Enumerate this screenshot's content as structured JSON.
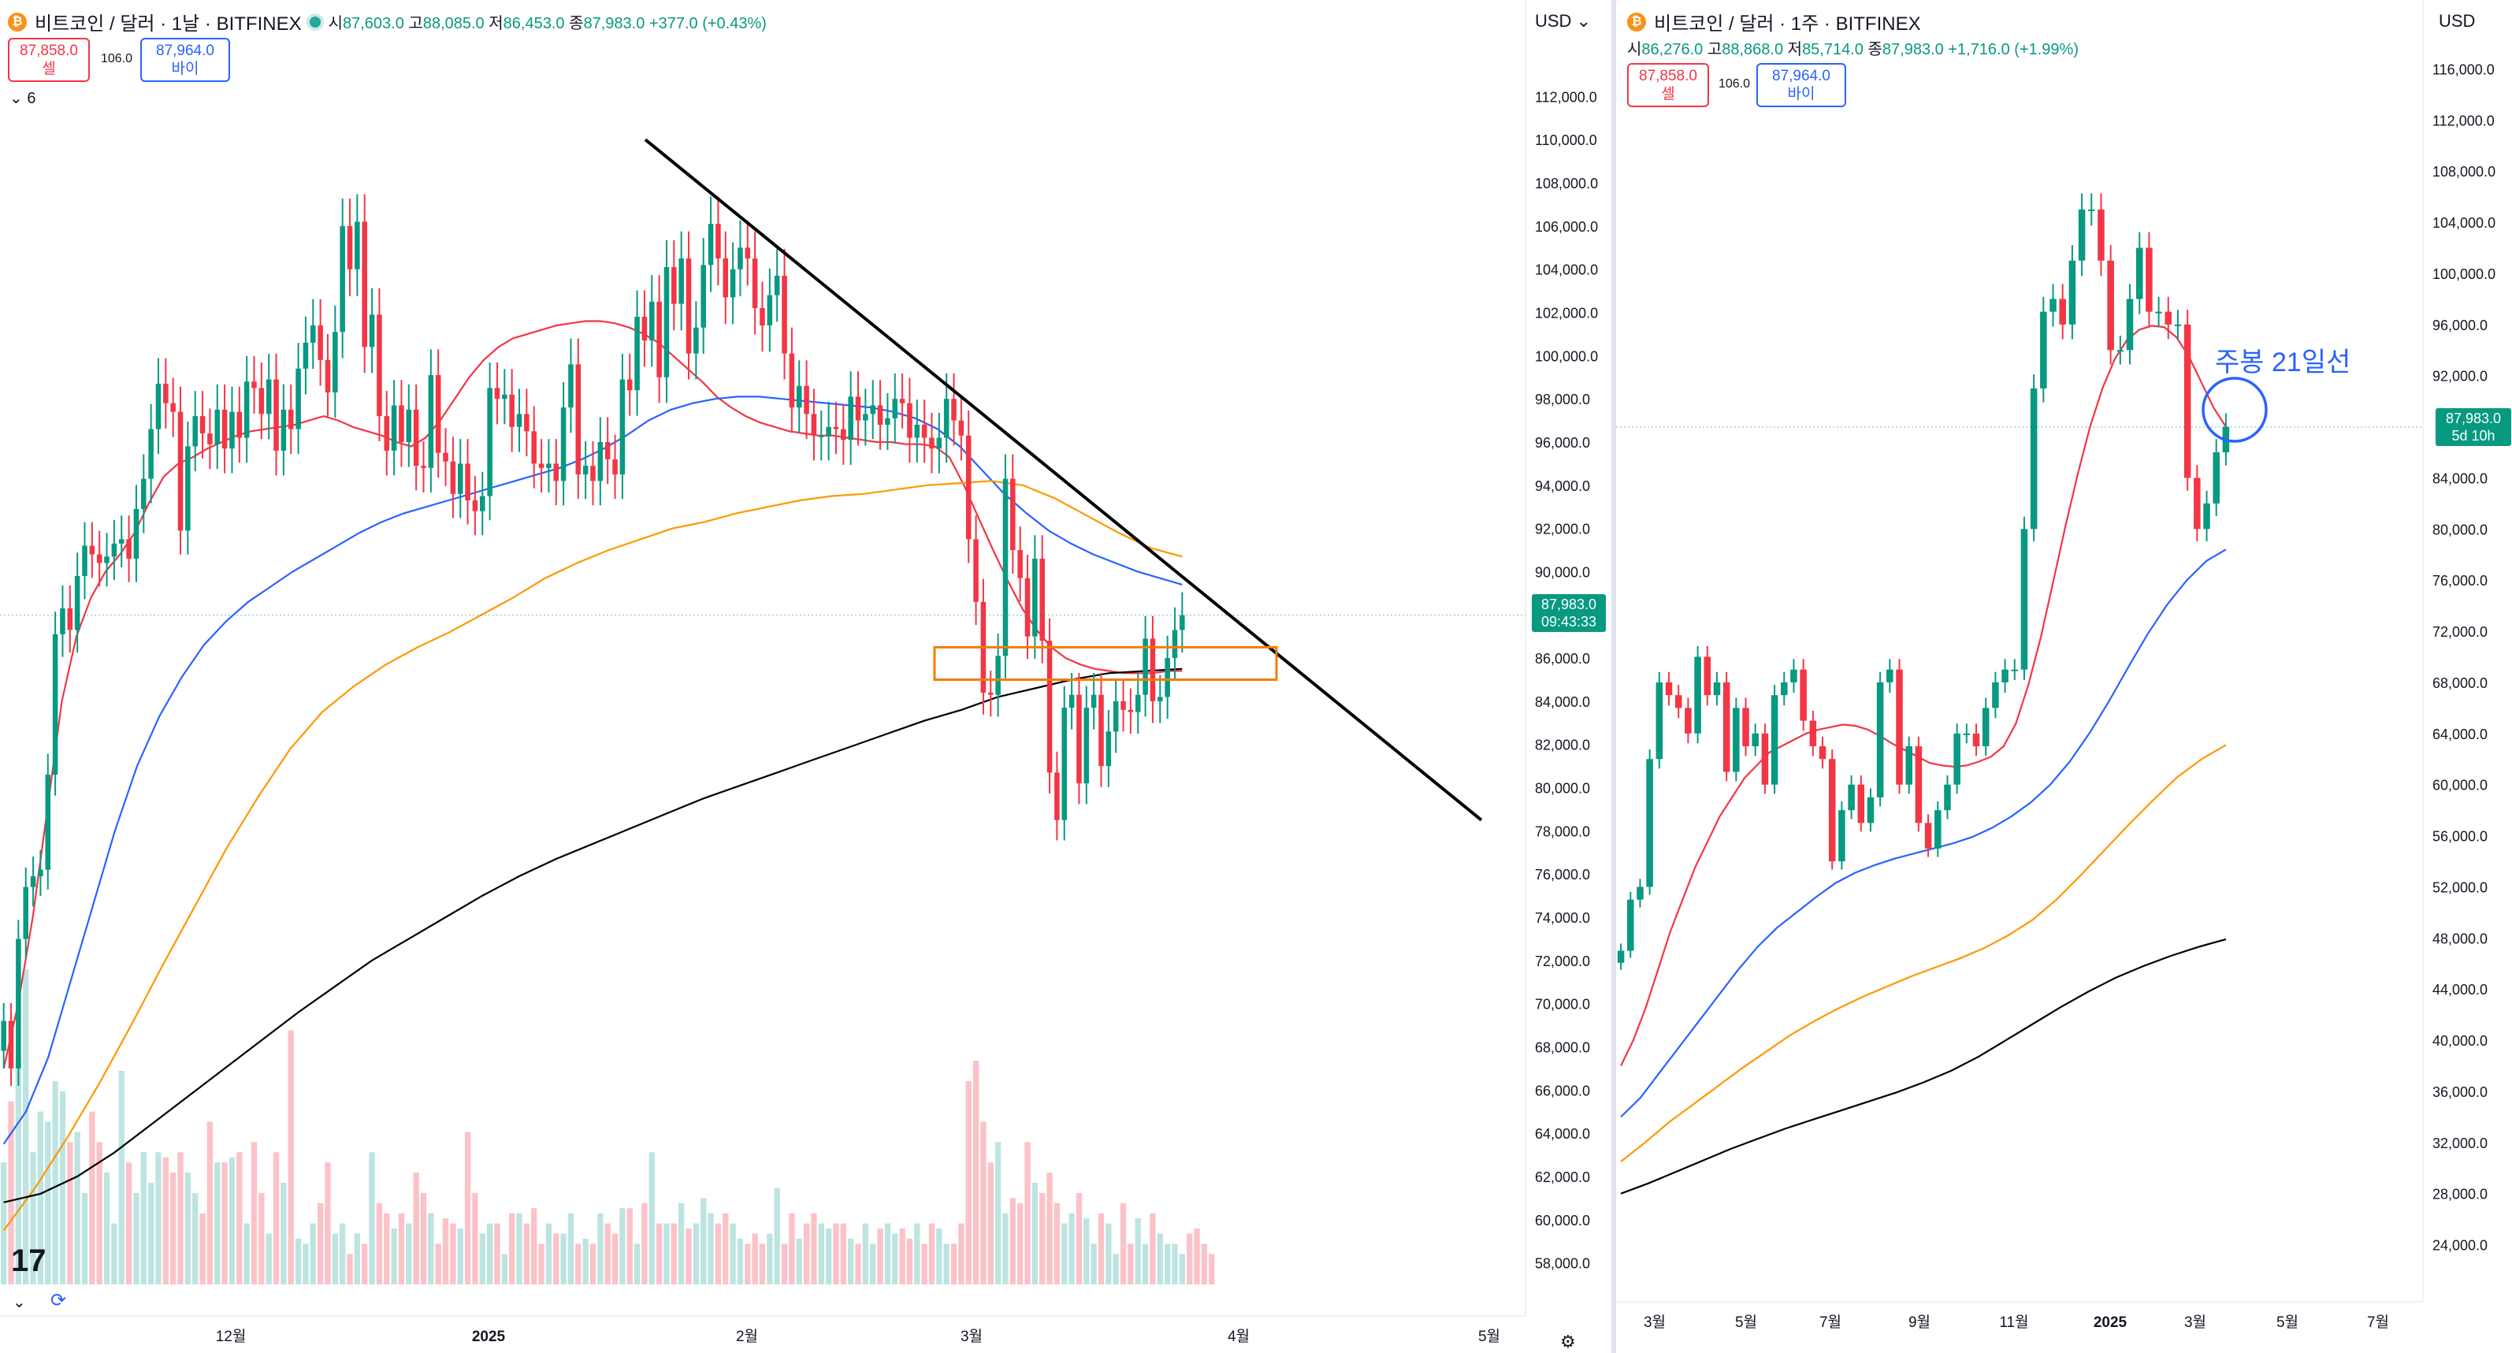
{
  "chart_data": [
    {
      "type": "candlestick",
      "symbol_title": "비트코인 / 달러 · 1날 · BITFINEX",
      "interval": "1날",
      "ohlc": {
        "open_label": "시",
        "open": "87,603.0",
        "high_label": "고",
        "high": "88,085.0",
        "low_label": "저",
        "low": "86,453.0",
        "close_label": "종",
        "close": "87,983.0",
        "change": "+377.0 (+0.43%)"
      },
      "sell": {
        "price": "87,858.0",
        "label": "셀"
      },
      "buy": {
        "price": "87,964.0",
        "label": "바이"
      },
      "spread": "106.0",
      "indicator_count": "6",
      "currency": "USD",
      "last_price": {
        "value": "87,983.0",
        "countdown": "09:43:33"
      },
      "y_ticks": [
        "112,000.0",
        "110,000.0",
        "108,000.0",
        "106,000.0",
        "104,000.0",
        "102,000.0",
        "100,000.0",
        "98,000.0",
        "96,000.0",
        "94,000.0",
        "92,000.0",
        "90,000.0",
        "86,000.0",
        "84,000.0",
        "82,000.0",
        "80,000.0",
        "78,000.0",
        "76,000.0",
        "74,000.0",
        "72,000.0",
        "70,000.0",
        "68,000.0",
        "66,000.0",
        "64,000.0",
        "62,000.0",
        "60,000.0",
        "58,000.0"
      ],
      "x_ticks": [
        "12월",
        "2025",
        "2월",
        "3월",
        "4월",
        "5월"
      ],
      "ylim": [
        57000,
        113000
      ],
      "ma_colors": {
        "ema_short": "#f23645",
        "ema_mid": "#2962ff",
        "ema_long": "#ff9800",
        "ema_200": "#000000"
      },
      "trendline": {
        "from": {
          "date": "2025-01-20",
          "value": 110000
        },
        "to": {
          "date": "2025-05-12",
          "value": 78500
        }
      },
      "support_box": {
        "from": "2025-02-27",
        "to": "2025-04-04",
        "low": 85000,
        "high": 86500
      },
      "price_series_close": [
        69200,
        67000,
        73000,
        75400,
        75900,
        76200,
        80600,
        87100,
        88300,
        87300,
        89800,
        91200,
        90800,
        90400,
        90700,
        91300,
        91500,
        90600,
        92900,
        94300,
        96600,
        98700,
        97800,
        97400,
        91900,
        95800,
        97200,
        96400,
        95900,
        97500,
        95700,
        97400,
        96200,
        98800,
        98500,
        97300,
        98900,
        95600,
        97500,
        96600,
        99400,
        100600,
        101400,
        99800,
        98300,
        101100,
        106000,
        104000,
        106200,
        100400,
        101900,
        97200,
        95600,
        97700,
        96000,
        97500,
        94900,
        94800,
        99100,
        95500,
        95100,
        93600,
        95000,
        93300,
        92800,
        93500,
        98500,
        98000,
        98200,
        96700,
        97300,
        96500,
        95000,
        94800,
        95000,
        94200,
        97600,
        99600,
        94500,
        94900,
        94200,
        96000,
        95200,
        94500,
        98900,
        98400,
        101800,
        100700,
        102500,
        99000,
        104100,
        102400,
        104500,
        100100,
        101300,
        104200,
        106100,
        104500,
        102700,
        104000,
        105000,
        104500,
        102200,
        101400,
        102800,
        103700,
        100100,
        97600,
        98600,
        97300,
        96300,
        96300,
        96700,
        96600,
        96100,
        98100,
        97000,
        97300,
        97700,
        96800,
        97100,
        98000,
        97800,
        96200,
        96800,
        96200,
        95700,
        96200,
        98000,
        97000,
        96300,
        91500,
        88600,
        84400,
        84300,
        86100,
        94300,
        91000,
        89700,
        87000,
        90600,
        86800,
        80700,
        78500,
        83700,
        84300,
        80200,
        83700,
        84300,
        81000,
        82600,
        84000,
        83600,
        83500,
        84300,
        86900,
        84000,
        84200,
        86000,
        87300,
        87983
      ],
      "volume_series": [
        120,
        180,
        220,
        310,
        130,
        170,
        160,
        200,
        190,
        140,
        150,
        90,
        170,
        140,
        110,
        60,
        210,
        120,
        90,
        130,
        100,
        130,
        125,
        110,
        130,
        110,
        90,
        70,
        160,
        120,
        120,
        125,
        130,
        60,
        140,
        90,
        50,
        130,
        100,
        250,
        45,
        40,
        60,
        80,
        120,
        50,
        60,
        30,
        50,
        40,
        130,
        80,
        70,
        55,
        70,
        60,
        110,
        90,
        70,
        40,
        65,
        60,
        55,
        150,
        90,
        50,
        60,
        60,
        30,
        70,
        70,
        60,
        75,
        40,
        60,
        50,
        50,
        70,
        40,
        45,
        40,
        70,
        60,
        50,
        75,
        75,
        40,
        80,
        130,
        60,
        60,
        60,
        80,
        55,
        60,
        85,
        70,
        60,
        70,
        60,
        45,
        40,
        50,
        40,
        50,
        95,
        40,
        70,
        45,
        60,
        70,
        60,
        55,
        60,
        60,
        45,
        40,
        60,
        40,
        55,
        60,
        50,
        55,
        45,
        60,
        40,
        60,
        55,
        40,
        40,
        60,
        200,
        220,
        160,
        120,
        140,
        70,
        85,
        80,
        140,
        100,
        90,
        110,
        80,
        60,
        70,
        90,
        65,
        40,
        70,
        60,
        30,
        80,
        40,
        65,
        40,
        70,
        50,
        40,
        40,
        30,
        50,
        55,
        40,
        30
      ],
      "ema_short": [
        67000,
        70000,
        74000,
        79000,
        84000,
        87000,
        88800,
        90000,
        90800,
        91800,
        93200,
        94400,
        95000,
        95300,
        95700,
        96000,
        96300,
        96500,
        96600,
        96700,
        96800,
        97000,
        97200,
        97000,
        96700,
        96500,
        96300,
        96000,
        95800,
        96200,
        97000,
        98000,
        99000,
        99800,
        100400,
        100800,
        101000,
        101200,
        101400,
        101500,
        101600,
        101600,
        101500,
        101300,
        101000,
        100600,
        100000,
        99400,
        98800,
        98100,
        97600,
        97200,
        96900,
        96700,
        96500,
        96400,
        96300,
        96300,
        96200,
        96100,
        96000,
        96000,
        95900,
        95900,
        95800,
        95300,
        94000,
        92500,
        91000,
        89600,
        88300,
        87300,
        86500,
        86000,
        85700,
        85500,
        85400,
        85300,
        85300,
        85300,
        85400,
        85400
      ],
      "ema_mid": [
        63500,
        65000,
        67500,
        71000,
        74500,
        78000,
        81000,
        83300,
        85100,
        86600,
        87700,
        88600,
        89300,
        90000,
        90600,
        91200,
        91800,
        92300,
        92700,
        93000,
        93300,
        93600,
        93900,
        94200,
        94500,
        94800,
        95200,
        95700,
        96300,
        97000,
        97500,
        97800,
        98000,
        98100,
        98100,
        98000,
        97900,
        97800,
        97700,
        97600,
        97400,
        97100,
        96600,
        95800,
        94700,
        93600,
        92700,
        91900,
        91300,
        90800,
        90400,
        90000,
        89700,
        89400
      ],
      "ema_long": [
        59500,
        61500,
        63800,
        66300,
        69000,
        71800,
        74500,
        77200,
        79600,
        81800,
        83500,
        84700,
        85700,
        86500,
        87200,
        88000,
        88800,
        89700,
        90400,
        91000,
        91500,
        92000,
        92300,
        92700,
        93000,
        93300,
        93500,
        93600,
        93800,
        94000,
        94100,
        94200,
        94000,
        93400,
        92600,
        91800,
        91100,
        90700
      ],
      "ema_200": [
        60800,
        61200,
        62000,
        63100,
        64400,
        65700,
        67000,
        68300,
        69600,
        70800,
        72000,
        73000,
        74000,
        75000,
        75900,
        76700,
        77400,
        78100,
        78800,
        79500,
        80100,
        80700,
        81300,
        81900,
        82500,
        83100,
        83600,
        84200,
        84600,
        85000,
        85300,
        85400,
        85500
      ]
    },
    {
      "type": "candlestick",
      "symbol_title": "비트코인 / 달러 · 1주 · BITFINEX",
      "interval": "1주",
      "ohlc": {
        "open_label": "시",
        "open": "86,276.0",
        "high_label": "고",
        "high": "88,868.0",
        "low_label": "저",
        "low": "85,714.0",
        "close_label": "종",
        "close": "87,983.0",
        "change": "+1,716.0 (+1.99%)"
      },
      "sell": {
        "price": "87,858.0",
        "label": "셀"
      },
      "buy": {
        "price": "87,964.0",
        "label": "바이"
      },
      "spread": "106.0",
      "currency": "USD",
      "last_price": {
        "value": "87,983.0",
        "countdown": "5d 10h"
      },
      "annotation": "주봉 21일선",
      "y_ticks": [
        "116,000.0",
        "112,000.0",
        "108,000.0",
        "104,000.0",
        "100,000.0",
        "96,000.0",
        "92,000.0",
        "84,000.0",
        "80,000.0",
        "76,000.0",
        "72,000.0",
        "68,000.0",
        "64,000.0",
        "60,000.0",
        "56,000.0",
        "52,000.0",
        "48,000.0",
        "44,000.0",
        "40,000.0",
        "36,000.0",
        "32,000.0",
        "28,000.0",
        "24,000.0"
      ],
      "x_ticks": [
        "3월",
        "5월",
        "7월",
        "9월",
        "11월",
        "2025",
        "3월",
        "5월",
        "7월"
      ],
      "ylim": [
        22000,
        118000
      ],
      "ma_colors": {
        "ema_21": "#f23645",
        "ema_mid": "#2962ff",
        "ema_long": "#ff9800",
        "ema_200": "#000000"
      },
      "price_series_close": [
        47000,
        51000,
        52000,
        62000,
        68000,
        67000,
        66000,
        64000,
        70000,
        67000,
        68000,
        61000,
        66000,
        63000,
        64000,
        60000,
        67000,
        68000,
        69000,
        65000,
        63000,
        62000,
        54000,
        58000,
        60000,
        57000,
        59000,
        68000,
        69000,
        60000,
        63000,
        57000,
        55000,
        58000,
        60000,
        64000,
        64000,
        63000,
        66000,
        68000,
        69000,
        69000,
        80000,
        91000,
        97000,
        98000,
        96000,
        101000,
        105000,
        105000,
        101000,
        94000,
        94000,
        98000,
        102000,
        97000,
        97000,
        96000,
        96000,
        84000,
        80000,
        82000,
        86000,
        88000
      ],
      "ema_21": [
        38000,
        40000,
        42500,
        45500,
        48500,
        51000,
        53500,
        55500,
        57500,
        59000,
        60500,
        61500,
        62500,
        63000,
        63500,
        64000,
        64300,
        64500,
        64700,
        64600,
        64300,
        63800,
        63200,
        62700,
        62200,
        61700,
        61500,
        61400,
        61500,
        61800,
        62200,
        63000,
        64800,
        67800,
        71500,
        75800,
        80200,
        84300,
        88000,
        91000,
        93300,
        94800,
        95600,
        95900,
        95800,
        95000,
        93500,
        91500,
        89500,
        88000
      ],
      "ema_mid": [
        34000,
        35500,
        37500,
        39500,
        41500,
        43500,
        45500,
        47300,
        48800,
        50000,
        51200,
        52300,
        53100,
        53700,
        54200,
        54600,
        55000,
        55400,
        55900,
        56600,
        57500,
        58600,
        60000,
        61800,
        64000,
        66500,
        69200,
        71800,
        74100,
        76000,
        77500,
        78400
      ],
      "ema_long": [
        30500,
        32000,
        33600,
        35000,
        36400,
        37800,
        39100,
        40400,
        41500,
        42500,
        43400,
        44200,
        45000,
        45700,
        46400,
        47200,
        48200,
        49400,
        51000,
        52900,
        54900,
        56900,
        58800,
        60600,
        62000,
        63100
      ],
      "ema_200": [
        28000,
        28800,
        29700,
        30600,
        31500,
        32300,
        33100,
        33800,
        34500,
        35200,
        35900,
        36700,
        37600,
        38700,
        40000,
        41300,
        42600,
        43800,
        44900,
        45800,
        46600,
        47300,
        47900
      ]
    }
  ]
}
